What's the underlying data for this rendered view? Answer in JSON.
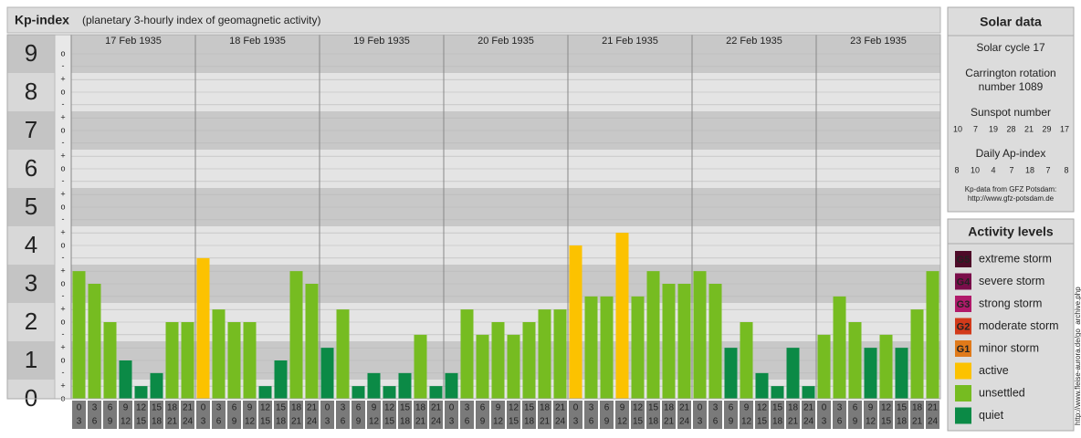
{
  "chart_data": {
    "type": "bar",
    "title": "Kp-index",
    "subtitle": "(planetary 3-hourly index of geomagnetic activity)",
    "ylim": [
      0,
      9.5
    ],
    "yticks": [
      0,
      1,
      2,
      3,
      4,
      5,
      6,
      7,
      8,
      9
    ],
    "minor_ticks": [
      {
        "value": 9,
        "label": "o"
      },
      {
        "value": 8.67,
        "label": "-"
      },
      {
        "value": 8.33,
        "label": "+"
      },
      {
        "value": 8,
        "label": "o"
      },
      {
        "value": 7.67,
        "label": "-"
      },
      {
        "value": 7.33,
        "label": "+"
      },
      {
        "value": 7,
        "label": "o"
      },
      {
        "value": 6.67,
        "label": "-"
      },
      {
        "value": 6.33,
        "label": "+"
      },
      {
        "value": 6,
        "label": "o"
      },
      {
        "value": 5.67,
        "label": "-"
      },
      {
        "value": 5.33,
        "label": "+"
      },
      {
        "value": 5,
        "label": "o"
      },
      {
        "value": 4.67,
        "label": "-"
      },
      {
        "value": 4.33,
        "label": "+"
      },
      {
        "value": 4,
        "label": "o"
      },
      {
        "value": 3.67,
        "label": "-"
      },
      {
        "value": 3.33,
        "label": "+"
      },
      {
        "value": 3,
        "label": "o"
      },
      {
        "value": 2.67,
        "label": "-"
      },
      {
        "value": 2.33,
        "label": "+"
      },
      {
        "value": 2,
        "label": "o"
      },
      {
        "value": 1.67,
        "label": "-"
      },
      {
        "value": 1.33,
        "label": "+"
      },
      {
        "value": 1,
        "label": "o"
      },
      {
        "value": 0.67,
        "label": "-"
      },
      {
        "value": 0.33,
        "label": "+"
      },
      {
        "value": 0,
        "label": "o"
      }
    ],
    "hours": [
      [
        "0",
        "3"
      ],
      [
        "3",
        "6"
      ],
      [
        "6",
        "9"
      ],
      [
        "9",
        "12"
      ],
      [
        "12",
        "15"
      ],
      [
        "15",
        "18"
      ],
      [
        "18",
        "21"
      ],
      [
        "21",
        "24"
      ]
    ],
    "series": [
      {
        "name": "17 Feb 1935",
        "values": [
          3.33,
          3,
          2,
          1,
          0.33,
          0.67,
          2,
          2
        ],
        "colors": [
          "#76bc21",
          "#76bc21",
          "#76bc21",
          "#0b8a46",
          "#0b8a46",
          "#0b8a46",
          "#76bc21",
          "#76bc21"
        ]
      },
      {
        "name": "18 Feb 1935",
        "values": [
          3.67,
          2.33,
          2,
          2,
          0.33,
          1,
          3.33,
          3
        ],
        "colors": [
          "#fcc200",
          "#76bc21",
          "#76bc21",
          "#76bc21",
          "#0b8a46",
          "#0b8a46",
          "#76bc21",
          "#76bc21"
        ]
      },
      {
        "name": "19 Feb 1935",
        "values": [
          1.33,
          2.33,
          0.33,
          0.67,
          0.33,
          0.67,
          1.67,
          0.33
        ],
        "colors": [
          "#0b8a46",
          "#76bc21",
          "#0b8a46",
          "#0b8a46",
          "#0b8a46",
          "#0b8a46",
          "#76bc21",
          "#0b8a46"
        ]
      },
      {
        "name": "20 Feb 1935",
        "values": [
          0.67,
          2.33,
          1.67,
          2,
          1.67,
          2,
          2.33,
          2.33
        ],
        "colors": [
          "#0b8a46",
          "#76bc21",
          "#76bc21",
          "#76bc21",
          "#76bc21",
          "#76bc21",
          "#76bc21",
          "#76bc21"
        ]
      },
      {
        "name": "21 Feb 1935",
        "values": [
          4,
          2.67,
          2.67,
          4.33,
          2.67,
          3.33,
          3,
          3
        ],
        "colors": [
          "#fcc200",
          "#76bc21",
          "#76bc21",
          "#fcc200",
          "#76bc21",
          "#76bc21",
          "#76bc21",
          "#76bc21"
        ]
      },
      {
        "name": "22 Feb 1935",
        "values": [
          3.33,
          3,
          1.33,
          2,
          0.67,
          0.33,
          1.33,
          0.33
        ],
        "colors": [
          "#76bc21",
          "#76bc21",
          "#0b8a46",
          "#76bc21",
          "#0b8a46",
          "#0b8a46",
          "#0b8a46",
          "#0b8a46"
        ]
      },
      {
        "name": "23 Feb 1935",
        "values": [
          1.67,
          2.67,
          2,
          1.33,
          1.67,
          1.33,
          2.33,
          3.33
        ],
        "colors": [
          "#76bc21",
          "#76bc21",
          "#76bc21",
          "#0b8a46",
          "#76bc21",
          "#0b8a46",
          "#76bc21",
          "#76bc21"
        ]
      }
    ]
  },
  "solar_panel": {
    "title": "Solar data",
    "cycle": "Solar cycle 17",
    "carrington": [
      "Carrington rotation",
      "number 1089"
    ],
    "sunspot_title": "Sunspot number",
    "sunspot": [
      10,
      7,
      19,
      28,
      21,
      29,
      17
    ],
    "ap_title": "Daily Ap-index",
    "ap": [
      8,
      10,
      4,
      7,
      18,
      7,
      8
    ],
    "source": [
      "Kp-data from GFZ Potsdam:",
      "http://www.gfz-potsdam.de"
    ]
  },
  "legend": {
    "title": "Activity levels",
    "items": [
      {
        "code": "G5",
        "label": "extreme storm",
        "color": "#4d0a28"
      },
      {
        "code": "G4",
        "label": "severe storm",
        "color": "#7a0d4a"
      },
      {
        "code": "G3",
        "label": "strong storm",
        "color": "#b01a6a"
      },
      {
        "code": "G2",
        "label": "moderate storm",
        "color": "#d23a1a"
      },
      {
        "code": "G1",
        "label": "minor storm",
        "color": "#e07a1a"
      },
      {
        "label": "active",
        "color": "#fcc200"
      },
      {
        "label": "unsettled",
        "color": "#76bc21"
      },
      {
        "label": "quiet",
        "color": "#0b8a46"
      }
    ]
  },
  "side_url": "http://www.fleise-aurora.de/go_archive.php"
}
